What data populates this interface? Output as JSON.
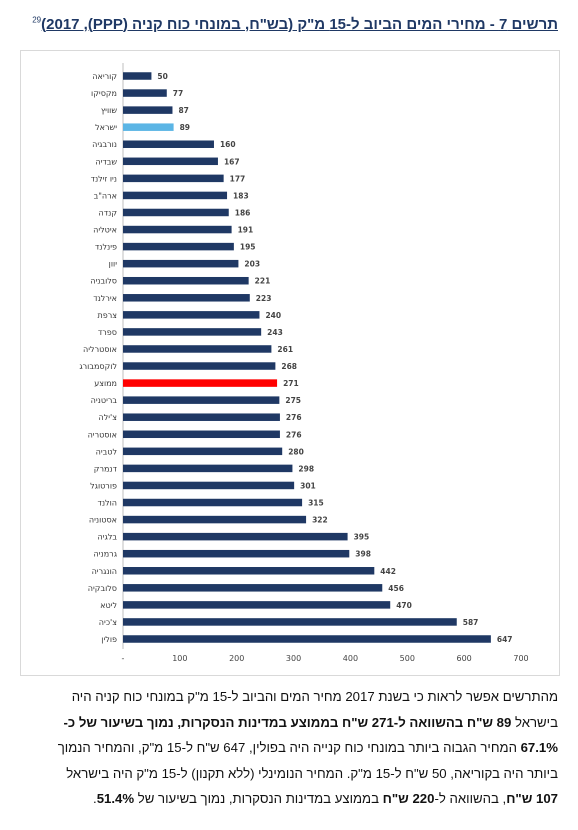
{
  "title": {
    "text": "תרשים 7 - מחירי המים הביוב ל-15 מ\"ק (בש\"ח, במונחי כוח קניה (PPP), 2017)",
    "footnote": "29"
  },
  "colors": {
    "bar_default": "#1f3864",
    "bar_israel": "#5bb5e5",
    "bar_average": "#ff0000",
    "axis": "#bfbfbf"
  },
  "chart_data": {
    "type": "bar",
    "orientation": "horizontal",
    "categories": [
      "קוריאה",
      "מקסיקו",
      "שוויץ",
      "ישראל",
      "נורבגיה",
      "שבדיה",
      "ניו זילנד",
      "ארה\"ב",
      "קנדה",
      "איטליה",
      "פינלנד",
      "יוון",
      "סלובניה",
      "אירלנד",
      "צרפת",
      "ספרד",
      "אוסטרליה",
      "לוקסמבורג",
      "ממוצע",
      "בריטניה",
      "צ'ילה",
      "אוסטריה",
      "לטביה",
      "דנמרק",
      "פורטוגל",
      "הולנד",
      "אסטוניה",
      "בלגיה",
      "גרמניה",
      "הונגריה",
      "סלובקיה",
      "ליטא",
      "צ'כיה",
      "פולין"
    ],
    "values": [
      50,
      77,
      87,
      89,
      160,
      167,
      177,
      183,
      186,
      191,
      195,
      203,
      221,
      223,
      240,
      243,
      261,
      268,
      271,
      275,
      276,
      276,
      280,
      298,
      301,
      315,
      322,
      395,
      398,
      442,
      456,
      470,
      587,
      647
    ],
    "highlight": {
      "ישראל": "#5bb5e5",
      "ממוצע": "#ff0000"
    },
    "xlim": [
      0,
      700
    ],
    "xticks": [
      "-",
      "100",
      "200",
      "300",
      "400",
      "500",
      "600",
      "700"
    ],
    "grid": false,
    "data_labels": true
  },
  "paragraph": {
    "l1": "מהתרשים אפשר לראות כי בשנת 2017 מחיר המים והביוב ל-15 מ\"ק במונחי כוח קניה היה",
    "l2a": "בישראל ",
    "l2b": "89 ש\"ח בהשוואה ל-271 ש\"ח בממוצע במדינות הנסקרות, נמוך בשיעור של כ-",
    "l3a": "67.1%",
    "l3b": " המחיר הגבוה ביותר במונחי כוח קנייה היה בפולין, 647 ש\"ח ל-15 מ\"ק, והמחיר הנמוך",
    "l4": "ביותר היה בקוריאה, 50 ש\"ח ל-15 מ\"ק. המחיר הנומינלי (ללא תקנון) ל-15 מ\"ק היה בישראל",
    "l5a": "107 ש\"ח",
    "l5b": ", בהשוואה ל-",
    "l5c": "220 ש\"ח",
    "l5d": " בממוצע במדינות הנסקרות, נמוך בשיעור של ",
    "l5e": "51.4%",
    "l5f": "."
  }
}
